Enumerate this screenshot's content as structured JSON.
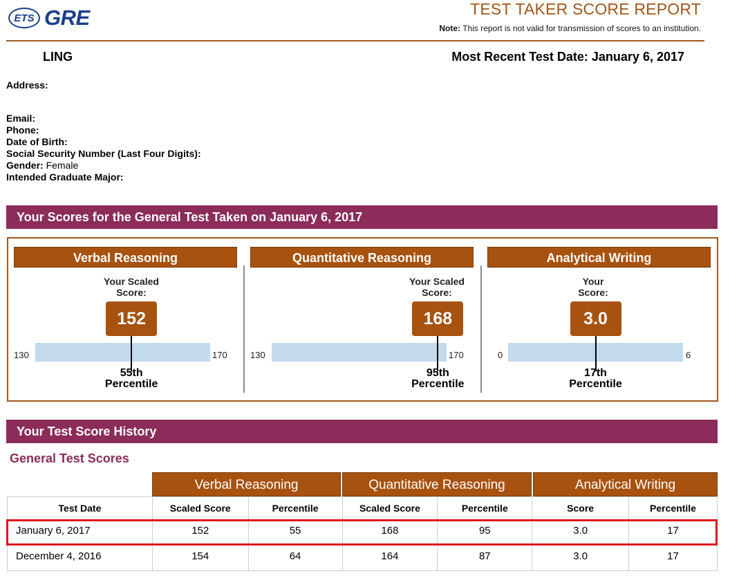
{
  "header": {
    "ets_logo": "ETS",
    "gre_logo": "GRE",
    "report_title": "TEST TAKER SCORE REPORT",
    "note_label": "Note:",
    "note_text": "This report is not valid for transmission of scores to an institution."
  },
  "test_taker": {
    "name": "LING",
    "most_recent_date": "Most Recent Test Date: January 6, 2017"
  },
  "info_fields": [
    {
      "label": "Address:",
      "value": ""
    },
    {
      "label": "Email:",
      "value": ""
    },
    {
      "label": "Phone:",
      "value": ""
    },
    {
      "label": "Date of Birth:",
      "value": ""
    },
    {
      "label": "Social Security Number (Last Four Digits):",
      "value": ""
    },
    {
      "label": "Gender:",
      "value": "Female"
    },
    {
      "label": "Intended Graduate Major:",
      "value": ""
    }
  ],
  "scores_section": {
    "title": "Your Scores for the General Test Taken on January 6, 2017",
    "panels": [
      {
        "heading": "Verbal Reasoning",
        "scaled_label_1": "Your Scaled",
        "scaled_label_2": "Score:",
        "score": "152",
        "min": "130",
        "max": "170",
        "score_value": 152,
        "percentile_1": "55th",
        "percentile_2": "Percentile"
      },
      {
        "heading": "Quantitative Reasoning",
        "scaled_label_1": "Your Scaled",
        "scaled_label_2": "Score:",
        "score": "168",
        "min": "130",
        "max": "170",
        "score_value": 168,
        "percentile_1": "95th",
        "percentile_2": "Percentile"
      },
      {
        "heading": "Analytical Writing",
        "scaled_label_1": "Your",
        "scaled_label_2": "Score:",
        "score": "3.0",
        "min": "0",
        "max": "6",
        "score_value": 3.0,
        "percentile_1": "17th",
        "percentile_2": "Percentile"
      }
    ]
  },
  "history": {
    "title": "Your Test Score History",
    "subtitle": "General Test Scores",
    "groups": [
      "Verbal Reasoning",
      "Quantitative Reasoning",
      "Analytical Writing"
    ],
    "columns": [
      "Test Date",
      "Scaled Score",
      "Percentile",
      "Scaled Score",
      "Percentile",
      "Score",
      "Percentile"
    ],
    "rows": [
      [
        "January 6, 2017",
        "152",
        "55",
        "168",
        "95",
        "3.0",
        "17"
      ],
      [
        "December 4, 2016",
        "154",
        "64",
        "164",
        "87",
        "3.0",
        "17"
      ]
    ]
  },
  "colors": {
    "accent_brown": "#a8520f",
    "section_purple": "#8b2c5a",
    "ets_blue": "#1b3f8b",
    "highlight_red": "#e0141e",
    "track_blue": "#c3d9ec"
  }
}
